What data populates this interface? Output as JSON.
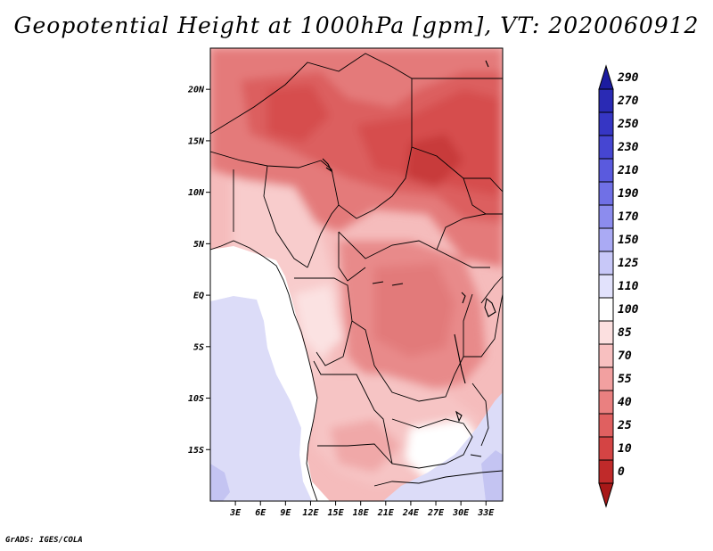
{
  "title": "Geopotential Height at 1000hPa [gpm], VT: 2020060912",
  "credit": "GrADS: IGES/COLA",
  "map": {
    "region": "Central Africa",
    "lon_range": [
      0,
      35
    ],
    "lat_range": [
      -20,
      24
    ],
    "lat_ticks": [
      "20N",
      "15N",
      "10N",
      "5N",
      "EQ",
      "5S",
      "10S",
      "15S"
    ],
    "lon_ticks": [
      "3E",
      "6E",
      "9E",
      "12E",
      "15E",
      "18E",
      "21E",
      "24E",
      "27E",
      "30E",
      "33E"
    ],
    "lat_tick_values": [
      20,
      15,
      10,
      5,
      0,
      -5,
      -10,
      -15
    ],
    "lon_tick_values": [
      3,
      6,
      9,
      12,
      15,
      18,
      21,
      24,
      27,
      30,
      33
    ]
  },
  "colorbar": {
    "levels": [
      "290",
      "270",
      "250",
      "230",
      "210",
      "190",
      "170",
      "150",
      "125",
      "110",
      "100",
      "85",
      "70",
      "55",
      "40",
      "25",
      "10",
      "0"
    ],
    "colors": [
      "#1c1ca0",
      "#2a2ab4",
      "#3636c4",
      "#4646d2",
      "#5a5ade",
      "#7070e6",
      "#8c8cee",
      "#aaaaf4",
      "#c8c8f8",
      "#e2e2fc",
      "#ffffff",
      "#fce0e0",
      "#f8c0c0",
      "#f2a0a0",
      "#ea8080",
      "#e06060",
      "#d44444",
      "#c02a2a",
      "#a81818"
    ]
  },
  "palette": {
    "red_strong": "#d84848",
    "red_mid": "#e27070",
    "red_light": "#f0a0a0",
    "pink": "#f8cccc",
    "pink_light": "#fce4e4",
    "white": "#ffffff",
    "blue_light": "#d8d8f8",
    "blue_mid": "#c0c0f0"
  }
}
